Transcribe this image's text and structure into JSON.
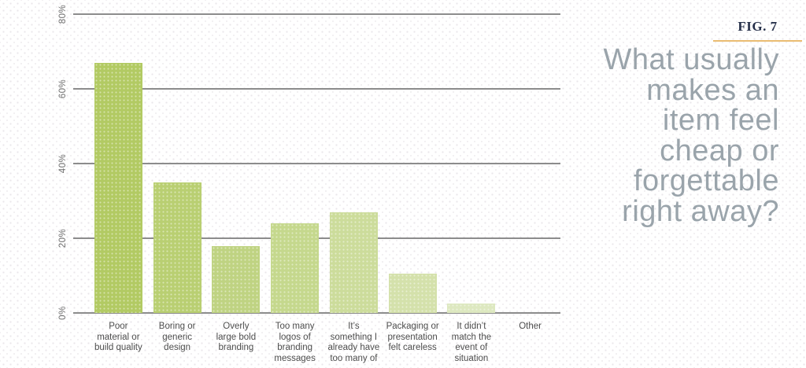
{
  "figure": {
    "label": "FIG. 7",
    "label_color": "#26304a",
    "accent_color": "#eabc72"
  },
  "question": {
    "text": "What usually makes an item feel cheap or forgettable right away?",
    "lines": [
      "What usually",
      "makes an",
      "item feel",
      "cheap or",
      "forgettable",
      "right away?"
    ],
    "color": "#9aa4ab"
  },
  "chart_data": {
    "type": "bar",
    "title": "What usually makes an item feel cheap or forgettable right away?",
    "ylabel": "",
    "xlabel": "",
    "unit": "%",
    "categories": [
      "Poor material or build quality",
      "Boring or generic design",
      "Overly large bold branding",
      "Too many logos of branding messages",
      "It’s something I already have too many of",
      "Packaging or presentation felt careless",
      "It didn’t match the event of situation",
      "Other"
    ],
    "category_lines": [
      [
        "Poor",
        "material or",
        "build quality"
      ],
      [
        "Boring or",
        "generic",
        "design"
      ],
      [
        "Overly",
        "large bold",
        "branding"
      ],
      [
        "Too many",
        "logos of",
        "branding",
        "messages"
      ],
      [
        "It’s",
        "something I",
        "already have",
        "too many of"
      ],
      [
        "Packaging or",
        "presentation",
        "felt careless"
      ],
      [
        "It didn’t",
        "match the",
        "event of",
        "situation"
      ],
      [
        "Other"
      ]
    ],
    "values": [
      67,
      35,
      18,
      24,
      27,
      10.5,
      2.5,
      0
    ],
    "bar_colors": [
      "#b2ca63",
      "#b9cf72",
      "#bfd382",
      "#c5d88d",
      "#ccdc9b",
      "#d4e1ab",
      "#dde8c0",
      "#e6eed2"
    ],
    "yticks": [
      0,
      20,
      40,
      60,
      80
    ],
    "tick_suffix": "%",
    "ylim": [
      0,
      80
    ],
    "grid": true,
    "legend_position": "none",
    "gridline_color": "#8c8c8c",
    "tick_label_color": "#6f6f6f",
    "category_label_color": "#4d4d4d"
  }
}
